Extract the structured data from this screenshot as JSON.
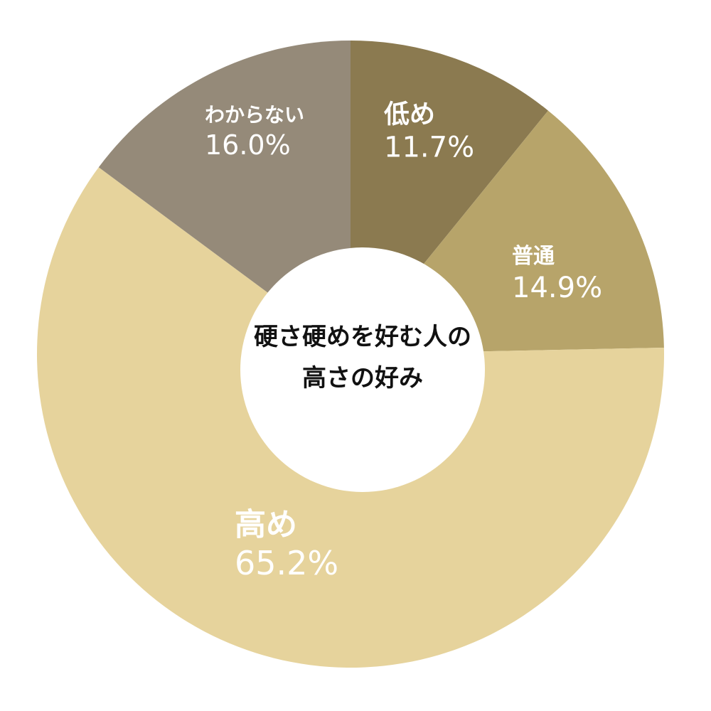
{
  "chart_data": {
    "type": "donut",
    "title": "硬さ硬めを好む人の高さの好み",
    "categories": [
      "低め",
      "普通",
      "高め",
      "わからない"
    ],
    "values": [
      11.7,
      14.9,
      65.2,
      16.0
    ],
    "value_labels": [
      "11.7%",
      "14.9%",
      "65.2%",
      "16.0%"
    ],
    "colors": [
      "#8b7a50",
      "#b7a46a",
      "#e6d39c",
      "#958a79"
    ]
  }
}
